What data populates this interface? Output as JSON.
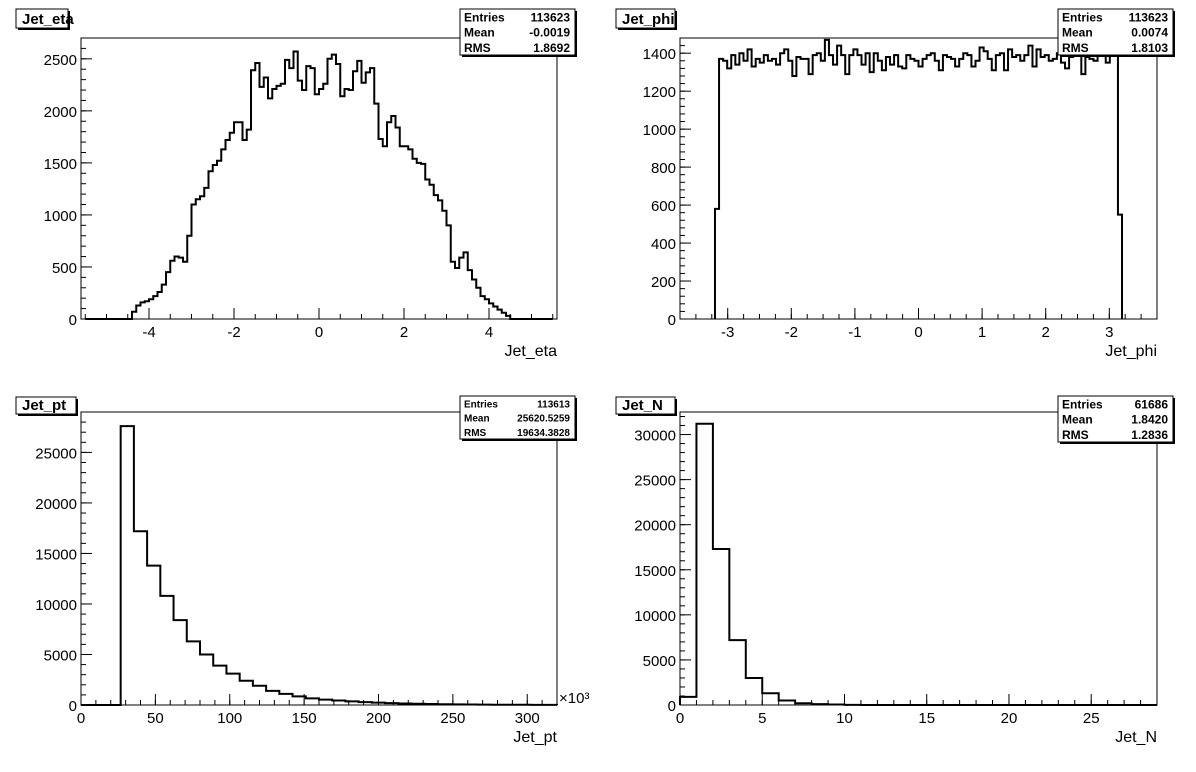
{
  "chart_data": [
    {
      "type": "histogram",
      "title": "Jet_eta",
      "xlabel": "Jet_eta",
      "x_ticks": [
        "-4",
        "-2",
        "0",
        "2",
        "4"
      ],
      "y_ticks": [
        "0",
        "500",
        "1000",
        "1500",
        "2000",
        "2500"
      ],
      "stats": [
        {
          "key": "Entries",
          "value": "113623"
        },
        {
          "key": "Mean",
          "value": "-0.0019"
        },
        {
          "key": "RMS",
          "value": "1.8692"
        }
      ],
      "xlim": [
        -5.6,
        5.6
      ],
      "ylim": [
        0,
        2700
      ],
      "x_range": [
        -5.5,
        5.5
      ],
      "values": [
        0,
        0,
        0,
        0,
        0,
        0,
        0,
        0,
        0,
        0,
        0,
        70,
        130,
        160,
        170,
        190,
        220,
        260,
        330,
        450,
        560,
        600,
        590,
        550,
        800,
        1100,
        1150,
        1180,
        1260,
        1420,
        1480,
        1520,
        1630,
        1720,
        1790,
        1890,
        1890,
        1720,
        1820,
        2390,
        2460,
        2230,
        2320,
        2120,
        2210,
        2240,
        2260,
        2490,
        2410,
        2570,
        2290,
        2200,
        2430,
        2410,
        2160,
        2210,
        2260,
        2500,
        2540,
        2450,
        2140,
        2210,
        2200,
        2380,
        2480,
        2270,
        2370,
        2410,
        2070,
        1730,
        1660,
        1890,
        1950,
        1840,
        1660,
        1660,
        1630,
        1540,
        1500,
        1490,
        1340,
        1290,
        1190,
        1140,
        1040,
        900,
        550,
        490,
        590,
        640,
        470,
        380,
        300,
        220,
        190,
        150,
        120,
        90,
        60,
        30,
        0,
        0,
        0,
        0,
        0,
        0,
        0,
        0,
        0,
        0
      ]
    },
    {
      "type": "histogram",
      "title": "Jet_phi",
      "xlabel": "Jet_phi",
      "x_ticks": [
        "-3",
        "-2",
        "-1",
        "0",
        "1",
        "2",
        "3"
      ],
      "y_ticks": [
        "0",
        "200",
        "400",
        "600",
        "800",
        "1000",
        "1200",
        "1400"
      ],
      "stats": [
        {
          "key": "Entries",
          "value": "113623"
        },
        {
          "key": "Mean",
          "value": "0.0074"
        },
        {
          "key": "RMS",
          "value": "1.8103"
        }
      ],
      "xlim": [
        -3.75,
        3.75
      ],
      "ylim": [
        0,
        1480
      ],
      "x_range": [
        -3.2,
        3.2
      ],
      "values": [
        580,
        1370,
        1360,
        1320,
        1390,
        1340,
        1400,
        1360,
        1420,
        1330,
        1370,
        1350,
        1390,
        1360,
        1370,
        1340,
        1400,
        1420,
        1360,
        1280,
        1380,
        1370,
        1370,
        1290,
        1390,
        1400,
        1360,
        1470,
        1390,
        1340,
        1440,
        1390,
        1290,
        1390,
        1420,
        1390,
        1340,
        1400,
        1300,
        1400,
        1360,
        1310,
        1380,
        1340,
        1390,
        1330,
        1320,
        1390,
        1370,
        1360,
        1330,
        1370,
        1390,
        1400,
        1360,
        1310,
        1390,
        1380,
        1370,
        1330,
        1370,
        1400,
        1390,
        1330,
        1360,
        1430,
        1410,
        1370,
        1310,
        1390,
        1400,
        1310,
        1420,
        1380,
        1390,
        1360,
        1390,
        1440,
        1330,
        1420,
        1380,
        1390,
        1360,
        1370,
        1400,
        1350,
        1320,
        1380,
        1460,
        1420,
        1290,
        1380,
        1370,
        1360,
        1390,
        1390,
        1350,
        1420,
        1540,
        550
      ]
    },
    {
      "type": "histogram",
      "title": "Jet_pt",
      "xlabel": "Jet_pt",
      "x_multiplier": "×10³",
      "x_ticks": [
        "0",
        "50",
        "100",
        "150",
        "200",
        "250",
        "300"
      ],
      "y_ticks": [
        "0",
        "5000",
        "10000",
        "15000",
        "20000",
        "25000"
      ],
      "stats": [
        {
          "key": "Entries",
          "value": "113613"
        },
        {
          "key": "Mean",
          "value": "25620.5259"
        },
        {
          "key": "RMS",
          "value": "19634.3828"
        }
      ],
      "xlim": [
        0,
        320
      ],
      "ylim": [
        0,
        29000
      ],
      "x_range": [
        0,
        320
      ],
      "values": [
        0,
        0,
        0,
        27600,
        17200,
        13800,
        10800,
        8400,
        6300,
        5000,
        3900,
        3100,
        2400,
        1900,
        1400,
        1100,
        850,
        650,
        530,
        440,
        360,
        290,
        230,
        190,
        150,
        120,
        100,
        80,
        60,
        50,
        40,
        30,
        25,
        20,
        15,
        10
      ]
    },
    {
      "type": "histogram",
      "title": "Jet_N",
      "xlabel": "Jet_N",
      "x_ticks": [
        "0",
        "5",
        "10",
        "15",
        "20",
        "25"
      ],
      "y_ticks": [
        "0",
        "5000",
        "10000",
        "15000",
        "20000",
        "25000",
        "30000"
      ],
      "stats": [
        {
          "key": "Entries",
          "value": "61686"
        },
        {
          "key": "Mean",
          "value": "1.8420"
        },
        {
          "key": "RMS",
          "value": "1.2836"
        }
      ],
      "xlim": [
        0,
        29
      ],
      "ylim": [
        0,
        32500
      ],
      "x_range": [
        0,
        29
      ],
      "values": [
        900,
        31200,
        17300,
        7200,
        3000,
        1300,
        500,
        200,
        100,
        50,
        20,
        0,
        0,
        0,
        0,
        0,
        0,
        0,
        0,
        0,
        0,
        0,
        0,
        0,
        0,
        0,
        0,
        0,
        0
      ]
    }
  ]
}
